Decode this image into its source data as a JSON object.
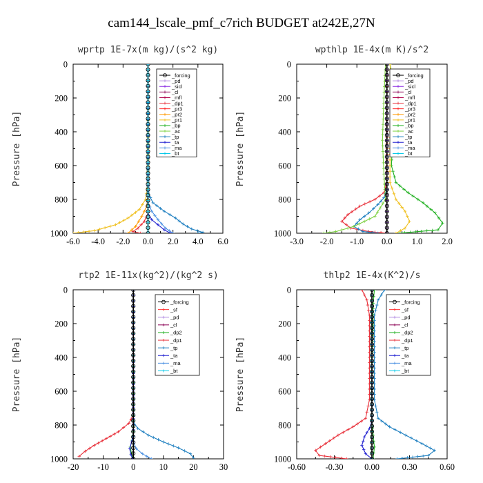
{
  "figure_title": "cam144_lscale_pmf_c7rich  BUDGET at242E,27N",
  "colors": {
    "_forcing": "#000000",
    "_pd": "#b088e0",
    "_sicl": "#8a2be2",
    "_cl": "#8b0054",
    "_mfl": "#b0004a",
    "_dp1": "#e8303a",
    "_pr3": "#ff2020",
    "_pr2": "#ff9900",
    "_pr1": "#f0c020",
    "_bp": "#20b020",
    "_ac": "#7cd040",
    "_tp": "#1e7fc0",
    "_ta": "#2020d0",
    "_ma": "#4a90e2",
    "_bt": "#00c8e8",
    "_sf": "#ff3030",
    "_dp2": "#20b020"
  },
  "chart_data": [
    {
      "type": "line",
      "title": "wprtp   1E-7x(m kg)/(s^2 kg)",
      "ylabel": "Pressure [hPa]",
      "xlim": [
        -6,
        6
      ],
      "ylim": [
        1000,
        0
      ],
      "xticks": [
        "-6.0",
        "-4.0",
        "-2.0",
        "0.0",
        "2.0",
        "4.0",
        "6.0"
      ],
      "xtick_values": [
        -6,
        -4,
        -2,
        0,
        2,
        4,
        6
      ],
      "yticks": [
        "0",
        "200",
        "400",
        "600",
        "800",
        "1000"
      ],
      "ytick_values": [
        0,
        200,
        400,
        600,
        800,
        1000
      ],
      "legend": [
        "_forcing",
        "_pd",
        "_sicl",
        "_cl",
        "_mfl",
        "_dp1",
        "_pr3",
        "_pr2",
        "_pr1",
        "_bp",
        "_ac",
        "_tp",
        "_ta",
        "_ma",
        "_bt"
      ],
      "series": [
        {
          "name": "_pr1",
          "x": [
            0,
            0,
            -0.2,
            -0.7,
            -1.6,
            -2.6,
            -4.3,
            -6.0
          ],
          "y": [
            0,
            700,
            800,
            860,
            910,
            950,
            985,
            1000
          ]
        },
        {
          "name": "_pr2",
          "x": [
            0,
            0,
            -0.1,
            -0.5,
            -1.0,
            -1.6
          ],
          "y": [
            0,
            760,
            840,
            900,
            960,
            1000
          ]
        },
        {
          "name": "_tp",
          "x": [
            0,
            0,
            0.4,
            1.3,
            2.2,
            2.8,
            3.5,
            4.4,
            4.0
          ],
          "y": [
            0,
            760,
            820,
            870,
            910,
            945,
            975,
            995,
            1000
          ]
        },
        {
          "name": "_ma",
          "x": [
            0,
            0,
            0.3,
            0.8,
            1.4,
            2.0
          ],
          "y": [
            0,
            820,
            870,
            920,
            970,
            1000
          ]
        },
        {
          "name": "_dp1",
          "x": [
            0,
            0,
            -0.3,
            -0.8,
            -1.2,
            -0.6
          ],
          "y": [
            0,
            880,
            930,
            970,
            990,
            1000
          ]
        },
        {
          "name": "_ta",
          "x": [
            0,
            0,
            0.3,
            0.8,
            1.3,
            1.8
          ],
          "y": [
            0,
            880,
            920,
            950,
            980,
            1000
          ]
        },
        {
          "name": "_forcing",
          "x": [
            0,
            0
          ],
          "y": [
            0,
            1000
          ]
        },
        {
          "name": "_bt",
          "x": [
            0,
            0
          ],
          "y": [
            0,
            1000
          ]
        }
      ]
    },
    {
      "type": "line",
      "title": "wpthlp   1E-4x(m K)/s^2",
      "ylabel": "Pressure [hPa]",
      "xlim": [
        -3,
        2
      ],
      "ylim": [
        1000,
        0
      ],
      "xticks": [
        "-3.0",
        "-2.0",
        "-1.0",
        "0.0",
        "1.0",
        "2.0"
      ],
      "xtick_values": [
        -3,
        -2,
        -1,
        0,
        1,
        2
      ],
      "yticks": [
        "0",
        "200",
        "400",
        "600",
        "800",
        "1000"
      ],
      "ytick_values": [
        0,
        200,
        400,
        600,
        800,
        1000
      ],
      "legend": [
        "_forcing",
        "_pd",
        "_sicl",
        "_cl",
        "_mfl",
        "_dp1",
        "_pr3",
        "_pr2",
        "_pr1",
        "_bp",
        "_ac",
        "_tp",
        "_ta",
        "_ma",
        "_bt"
      ],
      "series": [
        {
          "name": "_bp",
          "x": [
            0.1,
            0.2,
            0.25,
            0.2,
            0.15,
            0.3,
            0.7,
            1.2,
            1.6,
            1.85,
            1.7,
            0.4
          ],
          "y": [
            0,
            100,
            250,
            400,
            600,
            700,
            760,
            820,
            880,
            940,
            980,
            1000
          ]
        },
        {
          "name": "_pr1",
          "x": [
            0.1,
            0.15,
            0.15,
            0.1,
            0.1,
            0.3,
            0.6,
            0.75,
            0.6,
            0.3
          ],
          "y": [
            0,
            100,
            300,
            500,
            700,
            800,
            870,
            930,
            970,
            1000
          ]
        },
        {
          "name": "_dp1",
          "x": [
            0,
            0,
            -0.1,
            -0.4,
            -0.9,
            -1.3,
            -1.5,
            -1.2,
            -0.6,
            0
          ],
          "y": [
            0,
            700,
            760,
            800,
            840,
            890,
            930,
            970,
            990,
            1000
          ]
        },
        {
          "name": "_tp",
          "x": [
            0,
            0,
            -0.1,
            -0.3,
            -0.6,
            -0.9,
            -1.1,
            -0.8,
            -0.3
          ],
          "y": [
            0,
            740,
            790,
            830,
            880,
            920,
            960,
            990,
            1000
          ]
        },
        {
          "name": "_ac",
          "x": [
            -0.05,
            -0.1,
            -0.15,
            -0.1,
            -0.05,
            -0.4,
            -1.1,
            -1.7,
            -2.1
          ],
          "y": [
            0,
            200,
            450,
            650,
            800,
            900,
            960,
            990,
            1000
          ]
        },
        {
          "name": "_sicl",
          "x": [
            0,
            0
          ],
          "y": [
            0,
            1000
          ]
        },
        {
          "name": "_forcing",
          "x": [
            0,
            0
          ],
          "y": [
            0,
            1000
          ]
        }
      ]
    },
    {
      "type": "line",
      "title": "rtp2   1E-11x(kg^2)/(kg^2 s)",
      "ylabel": "Pressure [hPa]",
      "xlim": [
        -20,
        30
      ],
      "ylim": [
        1000,
        0
      ],
      "xticks": [
        "-20",
        "-10",
        "0",
        "10",
        "20",
        "30"
      ],
      "xtick_values": [
        -20,
        -10,
        0,
        10,
        20,
        30
      ],
      "yticks": [
        "0",
        "200",
        "400",
        "600",
        "800",
        "1000"
      ],
      "ytick_values": [
        0,
        200,
        400,
        600,
        800,
        1000
      ],
      "legend": [
        "_forcing",
        "_sf",
        "_pd",
        "_cl",
        "_dp2",
        "_dp1",
        "_tp",
        "_ta",
        "_ma",
        "_bt"
      ],
      "series": [
        {
          "name": "_dp1",
          "x": [
            0,
            0,
            -1.5,
            -5,
            -9,
            -13,
            -16,
            -18
          ],
          "y": [
            0,
            740,
            790,
            840,
            880,
            920,
            955,
            985
          ]
        },
        {
          "name": "_tp",
          "x": [
            0,
            0,
            1.5,
            5,
            10,
            15,
            19,
            20
          ],
          "y": [
            0,
            780,
            820,
            860,
            900,
            935,
            970,
            995
          ]
        },
        {
          "name": "_dp2",
          "x": [
            0,
            0,
            -0.4,
            -1.0,
            -0.6,
            0
          ],
          "y": [
            0,
            840,
            890,
            930,
            970,
            995
          ]
        },
        {
          "name": "_ma",
          "x": [
            0,
            0,
            1,
            3,
            6
          ],
          "y": [
            0,
            900,
            940,
            970,
            1000
          ]
        },
        {
          "name": "_ta",
          "x": [
            0,
            0,
            -0.6,
            -1.2,
            -0.8,
            -0.2
          ],
          "y": [
            0,
            860,
            900,
            940,
            975,
            1000
          ]
        },
        {
          "name": "_forcing",
          "x": [
            0,
            0
          ],
          "y": [
            0,
            1000
          ]
        }
      ]
    },
    {
      "type": "line",
      "title": "thlp2   1E-4x(K^2)/s",
      "ylabel": "Pressure [hPa]",
      "xlim": [
        -0.6,
        0.6
      ],
      "ylim": [
        1000,
        0
      ],
      "xticks": [
        "-0.60",
        "-0.30",
        "0.00",
        "0.30",
        "0.60"
      ],
      "xtick_values": [
        -0.6,
        -0.3,
        0,
        0.3,
        0.6
      ],
      "yticks": [
        "0",
        "200",
        "400",
        "600",
        "800",
        "1000"
      ],
      "ytick_values": [
        0,
        200,
        400,
        600,
        800,
        1000
      ],
      "legend": [
        "_forcing",
        "_sf",
        "_pd",
        "_cl",
        "_dp2",
        "_dp1",
        "_tp",
        "_ta",
        "_ma",
        "_bt"
      ],
      "series": [
        {
          "name": "_dp1",
          "x": [
            -0.08,
            -0.04,
            -0.02,
            -0.02,
            -0.02,
            -0.05,
            -0.15,
            -0.27,
            -0.37,
            -0.45,
            -0.42,
            -0.2
          ],
          "y": [
            0,
            60,
            150,
            400,
            650,
            760,
            810,
            860,
            910,
            950,
            980,
            1000
          ]
        },
        {
          "name": "_tp",
          "x": [
            0.1,
            0.05,
            0.02,
            0.02,
            0.02,
            0.05,
            0.14,
            0.27,
            0.4,
            0.5,
            0.45,
            0.2
          ],
          "y": [
            0,
            60,
            150,
            400,
            650,
            760,
            810,
            860,
            910,
            950,
            980,
            1000
          ]
        },
        {
          "name": "_dp2",
          "x": [
            0.02,
            0.01,
            0,
            0,
            0.01,
            0.02,
            0.01
          ],
          "y": [
            0,
            80,
            400,
            780,
            860,
            930,
            1000
          ]
        },
        {
          "name": "_ta",
          "x": [
            0,
            0,
            -0.02,
            -0.06,
            -0.08,
            -0.05,
            0
          ],
          "y": [
            0,
            780,
            820,
            870,
            920,
            970,
            1000
          ]
        },
        {
          "name": "_bt",
          "x": [
            0,
            0
          ],
          "y": [
            0,
            1000
          ]
        },
        {
          "name": "_forcing",
          "x": [
            0,
            0
          ],
          "y": [
            0,
            1000
          ]
        }
      ]
    }
  ]
}
